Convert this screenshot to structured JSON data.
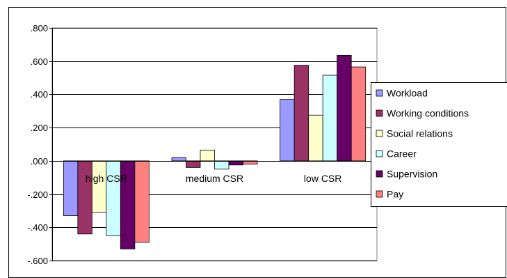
{
  "chart_data": {
    "type": "bar",
    "categories": [
      "high CSR",
      "medium CSR",
      "low CSR"
    ],
    "series": [
      {
        "name": "Workload",
        "color": "#9999FF",
        "values": [
          -0.33,
          0.02,
          0.37
        ]
      },
      {
        "name": "Working conditions",
        "color": "#993366",
        "values": [
          -0.44,
          -0.04,
          0.575
        ]
      },
      {
        "name": "Social relations",
        "color": "#FFFFCC",
        "values": [
          -0.31,
          0.065,
          0.275
        ]
      },
      {
        "name": "Career",
        "color": "#CCFFFF",
        "values": [
          -0.45,
          -0.05,
          0.515
        ]
      },
      {
        "name": "Supervision",
        "color": "#660066",
        "values": [
          -0.53,
          -0.025,
          0.635
        ]
      },
      {
        "name": "Pay",
        "color": "#FF8080",
        "values": [
          -0.49,
          -0.02,
          0.565
        ]
      }
    ],
    "yticks": [
      ".800",
      ".600",
      ".400",
      ".200",
      ".000",
      "-.200",
      "-.400",
      "-.600"
    ],
    "ylim": [
      -0.6,
      0.8
    ],
    "grid": true,
    "legend_position": "right"
  }
}
